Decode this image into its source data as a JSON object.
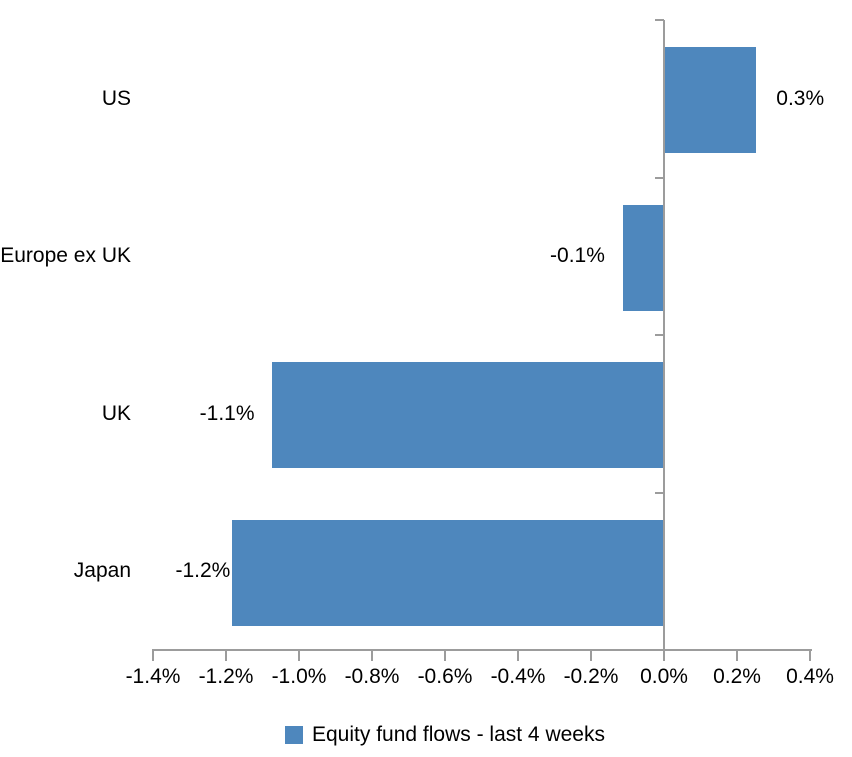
{
  "chart_data": {
    "type": "bar",
    "orientation": "horizontal",
    "categories": [
      "US",
      "Europe ex UK",
      "UK",
      "Japan"
    ],
    "values": [
      0.3,
      -0.1,
      -1.1,
      -1.2
    ],
    "value_labels": [
      "0.3%",
      "-0.1%",
      "-1.1%",
      "-1.2%"
    ],
    "bar_extents_pct": [
      0.25,
      -0.11,
      -1.07,
      -1.18
    ],
    "series": [
      {
        "name": "Equity fund flows - last 4 weeks",
        "values": [
          0.3,
          -0.1,
          -1.1,
          -1.2
        ]
      }
    ],
    "legend": {
      "label": "Equity fund flows - last 4 weeks",
      "position": "bottom"
    },
    "x_axis": {
      "tick_labels": [
        "-1.4%",
        "-1.2%",
        "-1.0%",
        "-0.8%",
        "-0.6%",
        "-0.4%",
        "-0.2%",
        "0.0%",
        "0.2%",
        "0.4%"
      ],
      "tick_values": [
        -1.4,
        -1.2,
        -1.0,
        -0.8,
        -0.6,
        -0.4,
        -0.2,
        0.0,
        0.2,
        0.4
      ],
      "range": [
        -1.4,
        0.4
      ]
    },
    "grid": false,
    "title": "",
    "xlabel": "",
    "ylabel": "",
    "colors": {
      "bar": "#4E87BD",
      "axis": "#9C9C9C",
      "text": "#000000",
      "background": "#FFFFFF"
    }
  }
}
